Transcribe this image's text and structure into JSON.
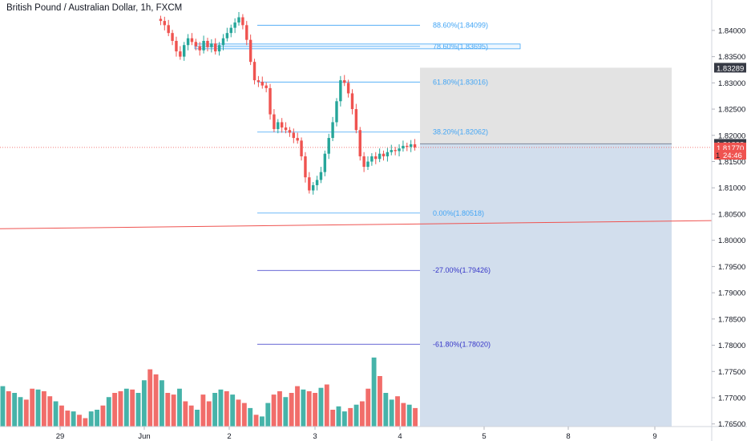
{
  "chart_data": {
    "type": "candlestick",
    "title": "British Pound / Australian Dollar, 1h, FXCM",
    "y_axis": {
      "range": [
        1.7645,
        1.8435
      ],
      "ticks": [
        "1.84000",
        "1.83500",
        "1.83000",
        "1.82500",
        "1.82000",
        "1.81500",
        "1.81000",
        "1.80500",
        "1.80000",
        "1.79500",
        "1.79000",
        "1.78500",
        "1.78000",
        "1.77500",
        "1.77000",
        "1.76500"
      ],
      "position": "right"
    },
    "x_axis": {
      "ticks": [
        {
          "label": "29",
          "x_day": 0
        },
        {
          "label": "Jun",
          "x_day": 1
        },
        {
          "label": "2",
          "x_day": 2
        },
        {
          "label": "3",
          "x_day": 3
        },
        {
          "label": "4",
          "x_day": 4
        },
        {
          "label": "5",
          "x_day": 5
        },
        {
          "label": "8",
          "x_day": 6
        },
        {
          "label": "9",
          "x_day": 7
        }
      ]
    },
    "price_tags": [
      {
        "text": "1.83289",
        "value": 1.83289,
        "bg": "#363a45",
        "fg": "#ffffff"
      },
      {
        "text": "1.81838",
        "value": 1.81838,
        "bg": "#363a45",
        "fg": "#ffffff"
      },
      {
        "text": "1.81770",
        "value": 1.8177,
        "bg": "#ef5350",
        "fg": "#ffffff"
      },
      {
        "text": "24:46",
        "value": 1.8163,
        "bg": "#ef5350",
        "fg": "#ffffff",
        "prefix": "1"
      }
    ],
    "fib_levels": [
      {
        "label": "88.60%(1.84099)",
        "value": 1.84099,
        "color": "#42a5f5"
      },
      {
        "label": "78.60%(1.83695)",
        "value": 1.83695,
        "color": "#42a5f5",
        "boxed": true
      },
      {
        "label": "61.80%(1.83016)",
        "value": 1.83016,
        "color": "#42a5f5"
      },
      {
        "label": "38.20%(1.82062)",
        "value": 1.82062,
        "color": "#42a5f5"
      },
      {
        "label": "0.00%(1.80518)",
        "value": 1.80518,
        "color": "#42a5f5"
      },
      {
        "label": "-27.00%(1.79426)",
        "value": 1.79426,
        "color": "#3535c8"
      },
      {
        "label": "-61.80%(1.78020)",
        "value": 1.7802,
        "color": "#3535c8"
      }
    ],
    "position_tool": {
      "type": "short",
      "entry": 1.81838,
      "stop": 1.83289,
      "target": 1.7645,
      "stop_zone_color": "#e0e0e0",
      "target_zone_color": "#d0dcec"
    },
    "current_price": 1.8177,
    "trendline": {
      "color": "#ef5350",
      "value_left": 1.8022,
      "value_right": 1.80375
    },
    "colors": {
      "up": "#26a69a",
      "down": "#ef5350",
      "volume_up": "#26a69a",
      "volume_down": "#ef5350"
    },
    "series": [
      {
        "name": "",
        "ohlc_path": [
          1.8422,
          1.8418,
          1.841,
          1.8395,
          1.838,
          1.836,
          1.835,
          1.8372,
          1.8385,
          1.8378,
          1.837,
          1.8362,
          1.838,
          1.8368,
          1.8375,
          1.836,
          1.8372,
          1.8385,
          1.8395,
          1.8405,
          1.8415,
          1.8425,
          1.841,
          1.8382,
          1.834,
          1.8305,
          1.8302,
          1.8295,
          1.829,
          1.824,
          1.8212,
          1.8225,
          1.8215,
          1.821,
          1.8205,
          1.8195,
          1.819,
          1.816,
          1.812,
          1.8095,
          1.8105,
          1.8115,
          1.813,
          1.8165,
          1.8195,
          1.8225,
          1.8265,
          1.8305,
          1.83,
          1.828,
          1.825,
          1.821,
          1.816,
          1.814,
          1.815,
          1.816,
          1.8155,
          1.8165,
          1.816,
          1.8168,
          1.8172,
          1.817,
          1.8175,
          1.818,
          1.8178,
          1.8183,
          1.8177
        ]
      }
    ],
    "volume": [
      48,
      42,
      40,
      35,
      32,
      45,
      44,
      42,
      36,
      30,
      25,
      19,
      18,
      14,
      10,
      18,
      20,
      25,
      35,
      40,
      42,
      45,
      44,
      40,
      55,
      68,
      62,
      55,
      40,
      38,
      45,
      30,
      25,
      20,
      38,
      30,
      40,
      44,
      42,
      38,
      32,
      28,
      22,
      14,
      12,
      28,
      38,
      42,
      35,
      40,
      48,
      44,
      42,
      40,
      46,
      50,
      20,
      24,
      18,
      22,
      26,
      30,
      45,
      82,
      60,
      40,
      32,
      36,
      28,
      26,
      22
    ]
  }
}
